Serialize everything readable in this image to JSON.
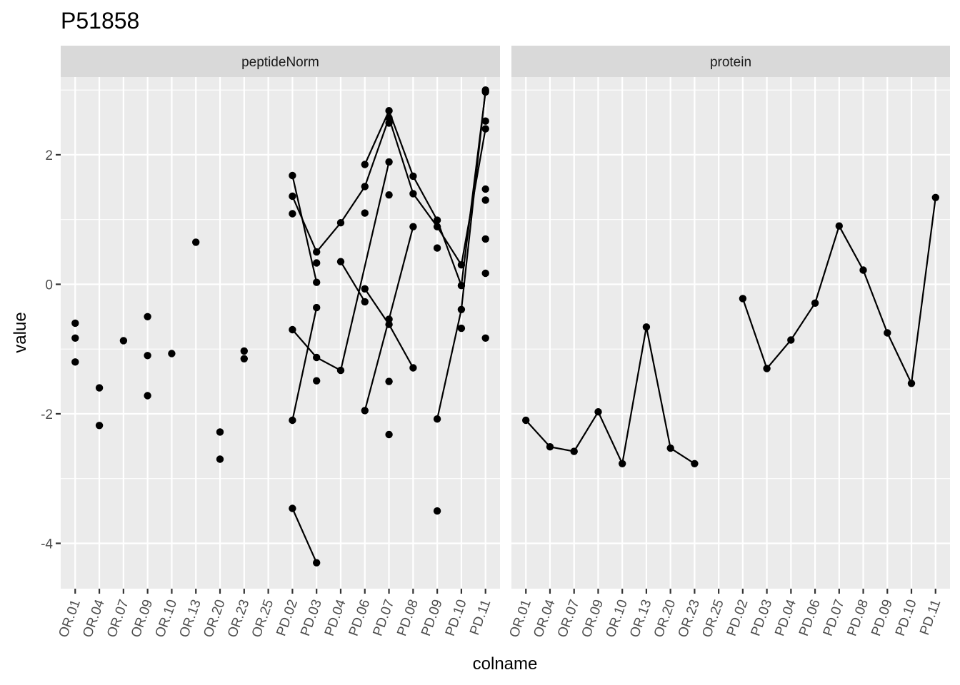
{
  "chart_data": {
    "type": "scatter",
    "title": "P51858",
    "xlabel": "colname",
    "ylabel": "value",
    "y_ticks": [
      -4,
      -2,
      0,
      2
    ],
    "ylim": [
      -4.7,
      3.2
    ],
    "grid": true,
    "categories": [
      "OR.01",
      "OR.04",
      "OR.07",
      "OR.09",
      "OR.10",
      "OR.13",
      "OR.20",
      "OR.23",
      "OR.25",
      "PD.02",
      "PD.03",
      "PD.04",
      "PD.06",
      "PD.07",
      "PD.08",
      "PD.09",
      "PD.10",
      "PD.11"
    ],
    "facets": [
      {
        "name": "peptideNorm",
        "points": [
          [
            "OR.01",
            -0.6
          ],
          [
            "OR.01",
            -0.83
          ],
          [
            "OR.01",
            -1.2
          ],
          [
            "OR.04",
            -1.6
          ],
          [
            "OR.04",
            -2.18
          ],
          [
            "OR.07",
            -0.87
          ],
          [
            "OR.09",
            -0.5
          ],
          [
            "OR.09",
            -1.1
          ],
          [
            "OR.09",
            -1.72
          ],
          [
            "OR.10",
            -1.07
          ],
          [
            "OR.13",
            0.65
          ],
          [
            "OR.20",
            -2.28
          ],
          [
            "OR.20",
            -2.7
          ],
          [
            "OR.23",
            -1.03
          ],
          [
            "OR.23",
            -1.15
          ],
          [
            "PD.02",
            1.68
          ],
          [
            "PD.02",
            1.36
          ],
          [
            "PD.02",
            1.09
          ],
          [
            "PD.02",
            -0.7
          ],
          [
            "PD.02",
            -2.1
          ],
          [
            "PD.02",
            -3.46
          ],
          [
            "PD.03",
            0.5
          ],
          [
            "PD.03",
            0.33
          ],
          [
            "PD.03",
            0.03
          ],
          [
            "PD.03",
            -0.36
          ],
          [
            "PD.03",
            -1.13
          ],
          [
            "PD.03",
            -1.49
          ],
          [
            "PD.03",
            -4.3
          ],
          [
            "PD.04",
            0.95
          ],
          [
            "PD.04",
            0.35
          ],
          [
            "PD.04",
            -1.33
          ],
          [
            "PD.06",
            1.85
          ],
          [
            "PD.06",
            1.51
          ],
          [
            "PD.06",
            1.1
          ],
          [
            "PD.06",
            -0.07
          ],
          [
            "PD.06",
            -0.27
          ],
          [
            "PD.06",
            -1.95
          ],
          [
            "PD.07",
            2.68
          ],
          [
            "PD.07",
            2.57
          ],
          [
            "PD.07",
            2.49
          ],
          [
            "PD.07",
            1.89
          ],
          [
            "PD.07",
            1.38
          ],
          [
            "PD.07",
            -0.54
          ],
          [
            "PD.07",
            -0.62
          ],
          [
            "PD.07",
            -1.5
          ],
          [
            "PD.07",
            -2.32
          ],
          [
            "PD.08",
            1.67
          ],
          [
            "PD.08",
            1.4
          ],
          [
            "PD.08",
            0.89
          ],
          [
            "PD.08",
            -1.29
          ],
          [
            "PD.09",
            0.99
          ],
          [
            "PD.09",
            0.89
          ],
          [
            "PD.09",
            0.56
          ],
          [
            "PD.09",
            -2.08
          ],
          [
            "PD.09",
            -3.5
          ],
          [
            "PD.10",
            0.3
          ],
          [
            "PD.10",
            -0.02
          ],
          [
            "PD.10",
            -0.39
          ],
          [
            "PD.10",
            -0.68
          ],
          [
            "PD.11",
            3.0
          ],
          [
            "PD.11",
            2.97
          ],
          [
            "PD.11",
            2.52
          ],
          [
            "PD.11",
            2.4
          ],
          [
            "PD.11",
            1.47
          ],
          [
            "PD.11",
            1.3
          ],
          [
            "PD.11",
            0.7
          ],
          [
            "PD.11",
            0.17
          ],
          [
            "PD.11",
            -0.83
          ]
        ],
        "lines": [
          [
            [
              "PD.02",
              1.68
            ],
            [
              "PD.03",
              0.03
            ]
          ],
          [
            [
              "PD.02",
              1.36
            ],
            [
              "PD.03",
              0.5
            ],
            [
              "PD.04",
              0.95
            ],
            [
              "PD.06",
              1.51
            ],
            [
              "PD.07",
              2.57
            ],
            [
              "PD.08",
              1.4
            ],
            [
              "PD.09",
              0.89
            ],
            [
              "PD.10",
              0.3
            ],
            [
              "PD.11",
              2.4
            ]
          ],
          [
            [
              "PD.02",
              -0.7
            ],
            [
              "PD.03",
              -1.13
            ],
            [
              "PD.04",
              -1.33
            ],
            [
              "PD.07",
              1.89
            ]
          ],
          [
            [
              "PD.02",
              -2.1
            ],
            [
              "PD.03",
              -0.36
            ]
          ],
          [
            [
              "PD.02",
              -3.46
            ],
            [
              "PD.03",
              -4.3
            ]
          ],
          [
            [
              "PD.04",
              0.35
            ],
            [
              "PD.06",
              -0.27
            ]
          ],
          [
            [
              "PD.06",
              -0.07
            ],
            [
              "PD.07",
              -0.62
            ],
            [
              "PD.08",
              -1.29
            ]
          ],
          [
            [
              "PD.06",
              1.85
            ],
            [
              "PD.07",
              2.68
            ],
            [
              "PD.08",
              1.67
            ],
            [
              "PD.09",
              0.99
            ],
            [
              "PD.10",
              -0.02
            ],
            [
              "PD.11",
              2.97
            ]
          ],
          [
            [
              "PD.06",
              -1.95
            ],
            [
              "PD.07",
              -0.54
            ],
            [
              "PD.08",
              0.89
            ]
          ],
          [
            [
              "PD.09",
              -2.08
            ],
            [
              "PD.10",
              -0.39
            ],
            [
              "PD.11",
              3.0
            ]
          ]
        ]
      },
      {
        "name": "protein",
        "points": [
          [
            "OR.01",
            -2.1
          ],
          [
            "OR.04",
            -2.51
          ],
          [
            "OR.07",
            -2.58
          ],
          [
            "OR.09",
            -1.97
          ],
          [
            "OR.10",
            -2.77
          ],
          [
            "OR.13",
            -0.66
          ],
          [
            "OR.20",
            -2.53
          ],
          [
            "OR.23",
            -2.77
          ],
          [
            "PD.02",
            -0.22
          ],
          [
            "PD.03",
            -1.3
          ],
          [
            "PD.04",
            -0.86
          ],
          [
            "PD.06",
            -0.29
          ],
          [
            "PD.07",
            0.9
          ],
          [
            "PD.08",
            0.22
          ],
          [
            "PD.09",
            -0.75
          ],
          [
            "PD.10",
            -1.53
          ],
          [
            "PD.11",
            1.34
          ]
        ],
        "lines": [
          [
            [
              "OR.01",
              -2.1
            ],
            [
              "OR.04",
              -2.51
            ],
            [
              "OR.07",
              -2.58
            ],
            [
              "OR.09",
              -1.97
            ],
            [
              "OR.10",
              -2.77
            ],
            [
              "OR.13",
              -0.66
            ],
            [
              "OR.20",
              -2.53
            ],
            [
              "OR.23",
              -2.77
            ]
          ],
          [
            [
              "PD.02",
              -0.22
            ],
            [
              "PD.03",
              -1.3
            ],
            [
              "PD.04",
              -0.86
            ],
            [
              "PD.06",
              -0.29
            ],
            [
              "PD.07",
              0.9
            ],
            [
              "PD.08",
              0.22
            ],
            [
              "PD.09",
              -0.75
            ],
            [
              "PD.10",
              -1.53
            ],
            [
              "PD.11",
              1.34
            ]
          ]
        ]
      }
    ]
  }
}
